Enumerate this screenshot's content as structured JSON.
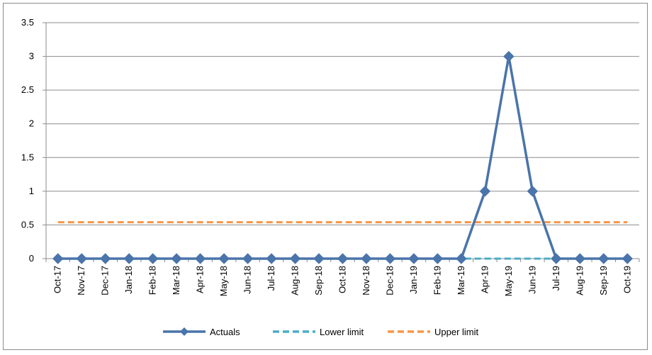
{
  "chart_data": {
    "type": "line",
    "categories": [
      "Oct-17",
      "Nov-17",
      "Dec-17",
      "Jan-18",
      "Feb-18",
      "Mar-18",
      "Apr-18",
      "May-18",
      "Jun-18",
      "Jul-18",
      "Aug-18",
      "Sep-18",
      "Oct-18",
      "Nov-18",
      "Dec-18",
      "Jan-19",
      "Feb-19",
      "Mar-19",
      "Apr-19",
      "May-19",
      "Jun-19",
      "Jul-19",
      "Aug-19",
      "Sep-19",
      "Oct-19"
    ],
    "ylim": [
      0,
      3.5
    ],
    "yticks": [
      0,
      0.5,
      1,
      1.5,
      2,
      2.5,
      3,
      3.5
    ],
    "ytick_labels": [
      "0",
      "0.5",
      "1",
      "1.5",
      "2",
      "2.5",
      "3",
      "3.5"
    ],
    "grid": true,
    "legend_position": "bottom",
    "series": [
      {
        "name": "Actuals",
        "color": "#4a74aa",
        "style": "solid",
        "marker": "diamond",
        "values": [
          0,
          0,
          0,
          0,
          0,
          0,
          0,
          0,
          0,
          0,
          0,
          0,
          0,
          0,
          0,
          0,
          0,
          0,
          1,
          3,
          1,
          0,
          0,
          0,
          0
        ]
      },
      {
        "name": "Lower limit",
        "color": "#4bacc6",
        "style": "dashed",
        "marker": "none",
        "values": [
          0,
          0,
          0,
          0,
          0,
          0,
          0,
          0,
          0,
          0,
          0,
          0,
          0,
          0,
          0,
          0,
          0,
          0,
          0,
          0,
          0,
          0,
          0,
          0,
          0
        ]
      },
      {
        "name": "Upper limit",
        "color": "#f79646",
        "style": "dashed",
        "marker": "none",
        "values": [
          0.54,
          0.54,
          0.54,
          0.54,
          0.54,
          0.54,
          0.54,
          0.54,
          0.54,
          0.54,
          0.54,
          0.54,
          0.54,
          0.54,
          0.54,
          0.54,
          0.54,
          0.54,
          0.54,
          0.54,
          0.54,
          0.54,
          0.54,
          0.54,
          0.54
        ]
      }
    ]
  }
}
